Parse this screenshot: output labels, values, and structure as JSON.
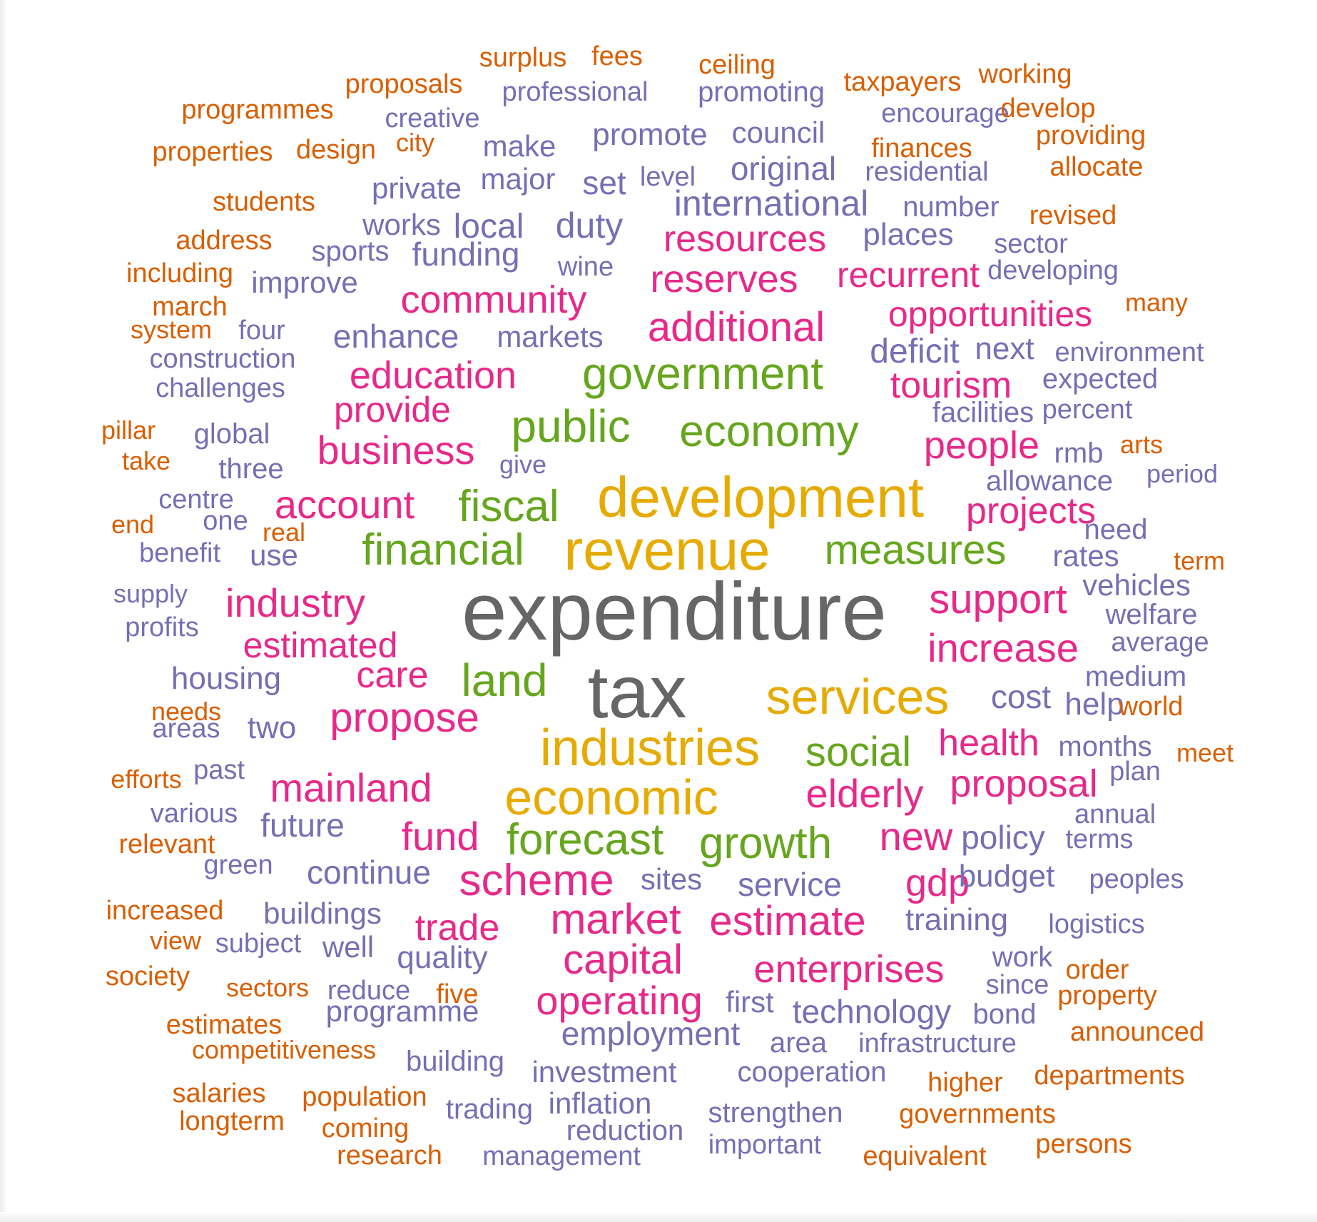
{
  "wordcloud": {
    "palette": {
      "tier1": "#666666",
      "tier2": "#e6ab02",
      "tier3": "#66a61e",
      "tier4": "#e7298a",
      "tier5": "#7570b3",
      "tier6": "#d95f02"
    },
    "words": [
      {
        "text": "expenditure",
        "tier": 1
      },
      {
        "text": "tax",
        "tier": 1
      },
      {
        "text": "development",
        "tier": 2
      },
      {
        "text": "revenue",
        "tier": 2
      },
      {
        "text": "services",
        "tier": 2
      },
      {
        "text": "industries",
        "tier": 2
      },
      {
        "text": "economic",
        "tier": 2
      },
      {
        "text": "government",
        "tier": 3
      },
      {
        "text": "public",
        "tier": 3
      },
      {
        "text": "economy",
        "tier": 3
      },
      {
        "text": "fiscal",
        "tier": 3
      },
      {
        "text": "financial",
        "tier": 3
      },
      {
        "text": "measures",
        "tier": 3
      },
      {
        "text": "land",
        "tier": 3
      },
      {
        "text": "social",
        "tier": 3
      },
      {
        "text": "forecast",
        "tier": 3
      },
      {
        "text": "growth",
        "tier": 3
      },
      {
        "text": "resources",
        "tier": 4
      },
      {
        "text": "reserves",
        "tier": 4
      },
      {
        "text": "recurrent",
        "tier": 4
      },
      {
        "text": "community",
        "tier": 4
      },
      {
        "text": "additional",
        "tier": 4
      },
      {
        "text": "opportunities",
        "tier": 4
      },
      {
        "text": "education",
        "tier": 4
      },
      {
        "text": "tourism",
        "tier": 4
      },
      {
        "text": "provide",
        "tier": 4
      },
      {
        "text": "business",
        "tier": 4
      },
      {
        "text": "people",
        "tier": 4
      },
      {
        "text": "account",
        "tier": 4
      },
      {
        "text": "projects",
        "tier": 4
      },
      {
        "text": "industry",
        "tier": 4
      },
      {
        "text": "support",
        "tier": 4
      },
      {
        "text": "estimated",
        "tier": 4
      },
      {
        "text": "increase",
        "tier": 4
      },
      {
        "text": "care",
        "tier": 4
      },
      {
        "text": "propose",
        "tier": 4
      },
      {
        "text": "health",
        "tier": 4
      },
      {
        "text": "mainland",
        "tier": 4
      },
      {
        "text": "elderly",
        "tier": 4
      },
      {
        "text": "proposal",
        "tier": 4
      },
      {
        "text": "fund",
        "tier": 4
      },
      {
        "text": "new",
        "tier": 4
      },
      {
        "text": "scheme",
        "tier": 4
      },
      {
        "text": "gdp",
        "tier": 4
      },
      {
        "text": "market",
        "tier": 4
      },
      {
        "text": "estimate",
        "tier": 4
      },
      {
        "text": "trade",
        "tier": 4
      },
      {
        "text": "capital",
        "tier": 4
      },
      {
        "text": "enterprises",
        "tier": 4
      },
      {
        "text": "operating",
        "tier": 4
      },
      {
        "text": "professional",
        "tier": 5
      },
      {
        "text": "promoting",
        "tier": 5
      },
      {
        "text": "creative",
        "tier": 5
      },
      {
        "text": "encourage",
        "tier": 5
      },
      {
        "text": "make",
        "tier": 5
      },
      {
        "text": "promote",
        "tier": 5
      },
      {
        "text": "council",
        "tier": 5
      },
      {
        "text": "private",
        "tier": 5
      },
      {
        "text": "major",
        "tier": 5
      },
      {
        "text": "set",
        "tier": 5
      },
      {
        "text": "level",
        "tier": 5
      },
      {
        "text": "original",
        "tier": 5
      },
      {
        "text": "residential",
        "tier": 5
      },
      {
        "text": "international",
        "tier": 5
      },
      {
        "text": "number",
        "tier": 5
      },
      {
        "text": "works",
        "tier": 5
      },
      {
        "text": "local",
        "tier": 5
      },
      {
        "text": "duty",
        "tier": 5
      },
      {
        "text": "places",
        "tier": 5
      },
      {
        "text": "sports",
        "tier": 5
      },
      {
        "text": "funding",
        "tier": 5
      },
      {
        "text": "sector",
        "tier": 5
      },
      {
        "text": "wine",
        "tier": 5
      },
      {
        "text": "improve",
        "tier": 5
      },
      {
        "text": "developing",
        "tier": 5
      },
      {
        "text": "four",
        "tier": 5
      },
      {
        "text": "enhance",
        "tier": 5
      },
      {
        "text": "markets",
        "tier": 5
      },
      {
        "text": "construction",
        "tier": 5
      },
      {
        "text": "deficit",
        "tier": 5
      },
      {
        "text": "next",
        "tier": 5
      },
      {
        "text": "environment",
        "tier": 5
      },
      {
        "text": "challenges",
        "tier": 5
      },
      {
        "text": "expected",
        "tier": 5
      },
      {
        "text": "facilities",
        "tier": 5
      },
      {
        "text": "global",
        "tier": 5
      },
      {
        "text": "percent",
        "tier": 5
      },
      {
        "text": "three",
        "tier": 5
      },
      {
        "text": "give",
        "tier": 5
      },
      {
        "text": "rmb",
        "tier": 5
      },
      {
        "text": "centre",
        "tier": 5
      },
      {
        "text": "allowance",
        "tier": 5
      },
      {
        "text": "period",
        "tier": 5
      },
      {
        "text": "one",
        "tier": 5
      },
      {
        "text": "need",
        "tier": 5
      },
      {
        "text": "benefit",
        "tier": 5
      },
      {
        "text": "use",
        "tier": 5
      },
      {
        "text": "rates",
        "tier": 5
      },
      {
        "text": "supply",
        "tier": 5
      },
      {
        "text": "vehicles",
        "tier": 5
      },
      {
        "text": "profits",
        "tier": 5
      },
      {
        "text": "welfare",
        "tier": 5
      },
      {
        "text": "average",
        "tier": 5
      },
      {
        "text": "housing",
        "tier": 5
      },
      {
        "text": "medium",
        "tier": 5
      },
      {
        "text": "cost",
        "tier": 5
      },
      {
        "text": "help",
        "tier": 5
      },
      {
        "text": "two",
        "tier": 5
      },
      {
        "text": "areas",
        "tier": 5
      },
      {
        "text": "months",
        "tier": 5
      },
      {
        "text": "past",
        "tier": 5
      },
      {
        "text": "plan",
        "tier": 5
      },
      {
        "text": "various",
        "tier": 5
      },
      {
        "text": "annual",
        "tier": 5
      },
      {
        "text": "future",
        "tier": 5
      },
      {
        "text": "policy",
        "tier": 5
      },
      {
        "text": "terms",
        "tier": 5
      },
      {
        "text": "green",
        "tier": 5
      },
      {
        "text": "continue",
        "tier": 5
      },
      {
        "text": "sites",
        "tier": 5
      },
      {
        "text": "service",
        "tier": 5
      },
      {
        "text": "budget",
        "tier": 5
      },
      {
        "text": "peoples",
        "tier": 5
      },
      {
        "text": "buildings",
        "tier": 5
      },
      {
        "text": "training",
        "tier": 5
      },
      {
        "text": "logistics",
        "tier": 5
      },
      {
        "text": "subject",
        "tier": 5
      },
      {
        "text": "well",
        "tier": 5
      },
      {
        "text": "quality",
        "tier": 5
      },
      {
        "text": "work",
        "tier": 5
      },
      {
        "text": "since",
        "tier": 5
      },
      {
        "text": "reduce",
        "tier": 5
      },
      {
        "text": "programme",
        "tier": 5
      },
      {
        "text": "first",
        "tier": 5
      },
      {
        "text": "technology",
        "tier": 5
      },
      {
        "text": "bond",
        "tier": 5
      },
      {
        "text": "employment",
        "tier": 5
      },
      {
        "text": "area",
        "tier": 5
      },
      {
        "text": "infrastructure",
        "tier": 5
      },
      {
        "text": "building",
        "tier": 5
      },
      {
        "text": "investment",
        "tier": 5
      },
      {
        "text": "cooperation",
        "tier": 5
      },
      {
        "text": "trading",
        "tier": 5
      },
      {
        "text": "inflation",
        "tier": 5
      },
      {
        "text": "strengthen",
        "tier": 5
      },
      {
        "text": "reduction",
        "tier": 5
      },
      {
        "text": "important",
        "tier": 5
      },
      {
        "text": "management",
        "tier": 5
      },
      {
        "text": "surplus",
        "tier": 6
      },
      {
        "text": "fees",
        "tier": 6
      },
      {
        "text": "ceiling",
        "tier": 6
      },
      {
        "text": "proposals",
        "tier": 6
      },
      {
        "text": "taxpayers",
        "tier": 6
      },
      {
        "text": "working",
        "tier": 6
      },
      {
        "text": "programmes",
        "tier": 6
      },
      {
        "text": "develop",
        "tier": 6
      },
      {
        "text": "city",
        "tier": 6
      },
      {
        "text": "providing",
        "tier": 6
      },
      {
        "text": "properties",
        "tier": 6
      },
      {
        "text": "design",
        "tier": 6
      },
      {
        "text": "finances",
        "tier": 6
      },
      {
        "text": "allocate",
        "tier": 6
      },
      {
        "text": "students",
        "tier": 6
      },
      {
        "text": "revised",
        "tier": 6
      },
      {
        "text": "address",
        "tier": 6
      },
      {
        "text": "including",
        "tier": 6
      },
      {
        "text": "march",
        "tier": 6
      },
      {
        "text": "many",
        "tier": 6
      },
      {
        "text": "system",
        "tier": 6
      },
      {
        "text": "pillar",
        "tier": 6
      },
      {
        "text": "arts",
        "tier": 6
      },
      {
        "text": "take",
        "tier": 6
      },
      {
        "text": "end",
        "tier": 6
      },
      {
        "text": "real",
        "tier": 6
      },
      {
        "text": "term",
        "tier": 6
      },
      {
        "text": "needs",
        "tier": 6
      },
      {
        "text": "world",
        "tier": 6
      },
      {
        "text": "efforts",
        "tier": 6
      },
      {
        "text": "meet",
        "tier": 6
      },
      {
        "text": "relevant",
        "tier": 6
      },
      {
        "text": "increased",
        "tier": 6
      },
      {
        "text": "view",
        "tier": 6
      },
      {
        "text": "order",
        "tier": 6
      },
      {
        "text": "society",
        "tier": 6
      },
      {
        "text": "sectors",
        "tier": 6
      },
      {
        "text": "five",
        "tier": 6
      },
      {
        "text": "property",
        "tier": 6
      },
      {
        "text": "estimates",
        "tier": 6
      },
      {
        "text": "announced",
        "tier": 6
      },
      {
        "text": "competitiveness",
        "tier": 6
      },
      {
        "text": "higher",
        "tier": 6
      },
      {
        "text": "departments",
        "tier": 6
      },
      {
        "text": "salaries",
        "tier": 6
      },
      {
        "text": "population",
        "tier": 6
      },
      {
        "text": "longterm",
        "tier": 6
      },
      {
        "text": "coming",
        "tier": 6
      },
      {
        "text": "governments",
        "tier": 6
      },
      {
        "text": "research",
        "tier": 6
      },
      {
        "text": "equivalent",
        "tier": 6
      },
      {
        "text": "persons",
        "tier": 6
      }
    ]
  }
}
